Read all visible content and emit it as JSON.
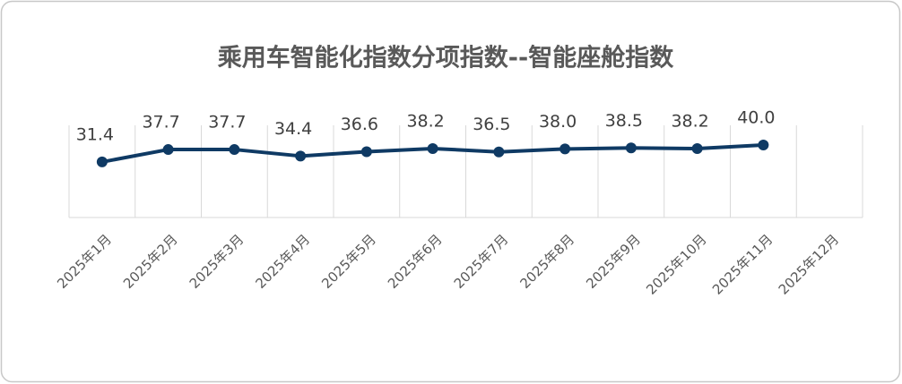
{
  "chart_data": {
    "type": "line",
    "title": "乘用车智能化指数分项指数--智能座舱指数",
    "categories": [
      "2025年1月",
      "2025年2月",
      "2025年3月",
      "2025年4月",
      "2025年5月",
      "2025年6月",
      "2025年7月",
      "2025年8月",
      "2025年9月",
      "2025年10月",
      "2025年11月",
      "2025年12月"
    ],
    "series": [
      {
        "name": "智能座舱指数",
        "color": "#0f3a64",
        "values": [
          31.4,
          37.7,
          37.7,
          34.4,
          36.6,
          38.2,
          36.5,
          38.0,
          38.5,
          38.2,
          40.0,
          null
        ],
        "value_labels": [
          "31.4",
          "37.7",
          "37.7",
          "34.4",
          "36.6",
          "38.2",
          "36.5",
          "38.0",
          "38.5",
          "38.2",
          "40.0",
          null
        ]
      }
    ],
    "ylim": [
      0,
      50
    ]
  }
}
